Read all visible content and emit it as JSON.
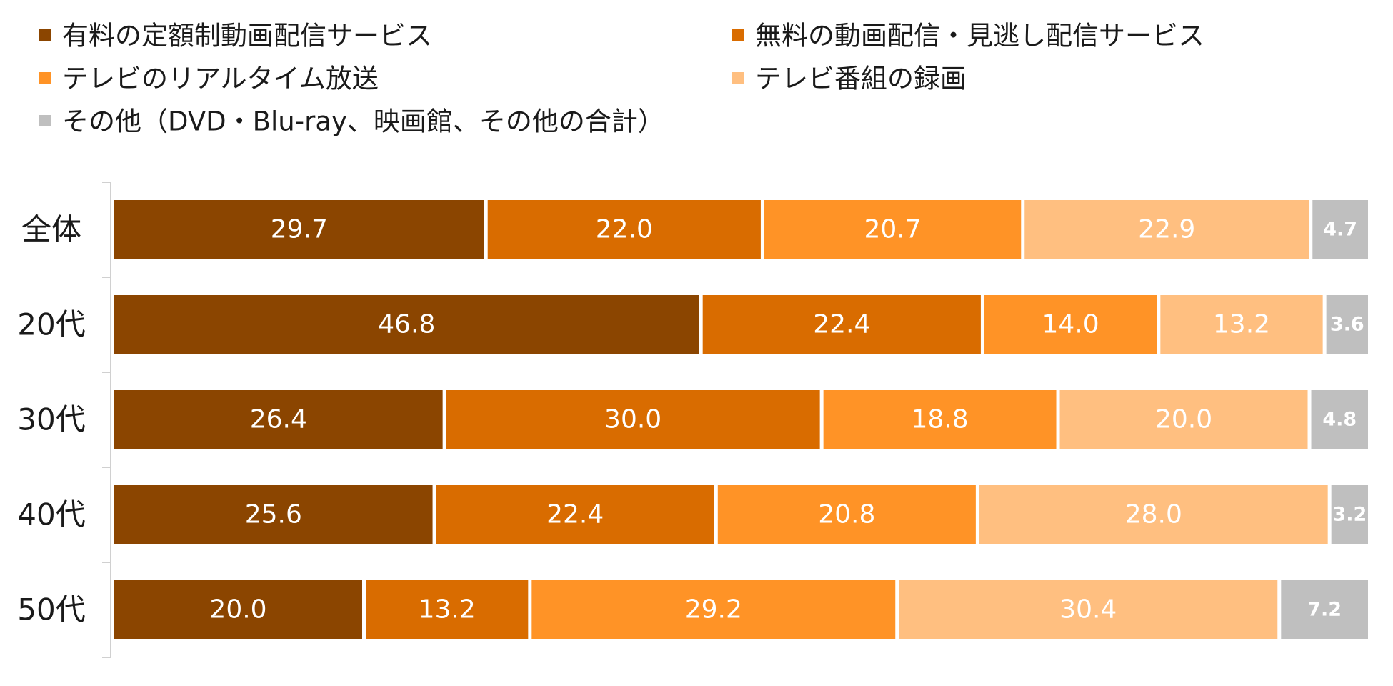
{
  "chart_data": {
    "type": "bar",
    "orientation": "horizontal",
    "stacked": true,
    "normalized_percent": true,
    "categories": [
      "全体",
      "20代",
      "30代",
      "40代",
      "50代"
    ],
    "series": [
      {
        "name": "有料の定額制動画配信サービス",
        "color": "#8B4500",
        "values": [
          29.7,
          46.8,
          26.4,
          25.6,
          20.0
        ]
      },
      {
        "name": "無料の動画配信・見逃し配信サービス",
        "color": "#D96C00",
        "values": [
          22.0,
          22.4,
          30.0,
          22.4,
          13.2
        ]
      },
      {
        "name": "テレビのリアルタイム放送",
        "color": "#FF9326",
        "values": [
          20.7,
          14.0,
          18.8,
          20.8,
          29.2
        ]
      },
      {
        "name": "テレビ番組の録画",
        "color": "#FFBF80",
        "values": [
          22.9,
          13.2,
          20.0,
          28.0,
          30.4
        ]
      },
      {
        "name": "その他（DVD・Blu-ray、映画館、その他の合計）",
        "color": "#BFBFBF",
        "values": [
          4.7,
          3.6,
          4.8,
          3.2,
          7.2
        ]
      }
    ],
    "title": "",
    "xlabel": "",
    "ylabel": "",
    "legend_position": "top",
    "grid": false,
    "data_labels": true
  }
}
